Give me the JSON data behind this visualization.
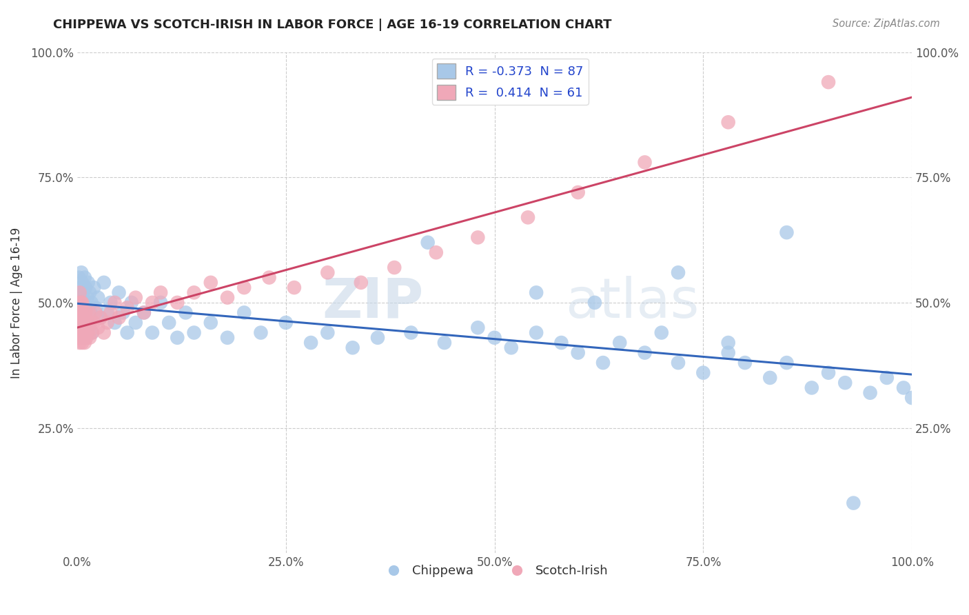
{
  "title": "CHIPPEWA VS SCOTCH-IRISH IN LABOR FORCE | AGE 16-19 CORRELATION CHART",
  "source_text": "Source: ZipAtlas.com",
  "ylabel": "In Labor Force | Age 16-19",
  "legend_labels": [
    "Chippewa",
    "Scotch-Irish"
  ],
  "chippewa_color": "#a8c8e8",
  "scotch_irish_color": "#f0a8b8",
  "chippewa_line_color": "#3366bb",
  "scotch_irish_line_color": "#cc4466",
  "chippewa_R": -0.373,
  "chippewa_N": 87,
  "scotch_irish_R": 0.414,
  "scotch_irish_N": 61,
  "xlim": [
    0.0,
    1.0
  ],
  "ylim": [
    0.0,
    1.0
  ],
  "watermark_zip": "ZIP",
  "watermark_atlas": "atlas",
  "background_color": "#ffffff",
  "grid_color": "#cccccc",
  "chippewa_x": [
    0.001,
    0.002,
    0.003,
    0.003,
    0.004,
    0.004,
    0.005,
    0.005,
    0.006,
    0.006,
    0.007,
    0.007,
    0.008,
    0.008,
    0.009,
    0.009,
    0.01,
    0.01,
    0.011,
    0.012,
    0.013,
    0.014,
    0.015,
    0.016,
    0.017,
    0.018,
    0.02,
    0.022,
    0.025,
    0.028,
    0.032,
    0.036,
    0.04,
    0.045,
    0.05,
    0.055,
    0.06,
    0.065,
    0.07,
    0.08,
    0.09,
    0.1,
    0.11,
    0.12,
    0.13,
    0.14,
    0.16,
    0.18,
    0.2,
    0.22,
    0.25,
    0.28,
    0.3,
    0.33,
    0.36,
    0.4,
    0.44,
    0.48,
    0.5,
    0.52,
    0.55,
    0.58,
    0.6,
    0.63,
    0.65,
    0.68,
    0.7,
    0.72,
    0.75,
    0.78,
    0.8,
    0.83,
    0.85,
    0.88,
    0.9,
    0.92,
    0.95,
    0.97,
    0.99,
    1.0,
    0.42,
    0.55,
    0.72,
    0.85,
    0.93,
    0.62,
    0.78
  ],
  "chippewa_y": [
    0.52,
    0.55,
    0.48,
    0.5,
    0.53,
    0.47,
    0.56,
    0.44,
    0.5,
    0.54,
    0.46,
    0.52,
    0.48,
    0.43,
    0.55,
    0.5,
    0.47,
    0.53,
    0.49,
    0.51,
    0.54,
    0.46,
    0.52,
    0.48,
    0.5,
    0.44,
    0.53,
    0.49,
    0.51,
    0.47,
    0.54,
    0.48,
    0.5,
    0.46,
    0.52,
    0.48,
    0.44,
    0.5,
    0.46,
    0.48,
    0.44,
    0.5,
    0.46,
    0.43,
    0.48,
    0.44,
    0.46,
    0.43,
    0.48,
    0.44,
    0.46,
    0.42,
    0.44,
    0.41,
    0.43,
    0.44,
    0.42,
    0.45,
    0.43,
    0.41,
    0.44,
    0.42,
    0.4,
    0.38,
    0.42,
    0.4,
    0.44,
    0.38,
    0.36,
    0.4,
    0.38,
    0.35,
    0.38,
    0.33,
    0.36,
    0.34,
    0.32,
    0.35,
    0.33,
    0.31,
    0.62,
    0.52,
    0.56,
    0.64,
    0.1,
    0.5,
    0.42
  ],
  "scotch_irish_x": [
    0.001,
    0.001,
    0.002,
    0.002,
    0.003,
    0.003,
    0.003,
    0.004,
    0.004,
    0.005,
    0.005,
    0.005,
    0.006,
    0.006,
    0.006,
    0.007,
    0.007,
    0.008,
    0.008,
    0.009,
    0.009,
    0.01,
    0.01,
    0.011,
    0.012,
    0.013,
    0.014,
    0.015,
    0.016,
    0.018,
    0.02,
    0.022,
    0.025,
    0.028,
    0.032,
    0.036,
    0.04,
    0.045,
    0.05,
    0.06,
    0.07,
    0.08,
    0.09,
    0.1,
    0.12,
    0.14,
    0.16,
    0.18,
    0.2,
    0.23,
    0.26,
    0.3,
    0.34,
    0.38,
    0.43,
    0.48,
    0.54,
    0.6,
    0.68,
    0.78,
    0.9
  ],
  "scotch_irish_y": [
    0.43,
    0.48,
    0.44,
    0.5,
    0.42,
    0.46,
    0.52,
    0.44,
    0.48,
    0.43,
    0.47,
    0.5,
    0.42,
    0.46,
    0.5,
    0.44,
    0.48,
    0.43,
    0.47,
    0.42,
    0.46,
    0.44,
    0.48,
    0.43,
    0.46,
    0.44,
    0.48,
    0.43,
    0.46,
    0.44,
    0.46,
    0.48,
    0.45,
    0.47,
    0.44,
    0.46,
    0.48,
    0.5,
    0.47,
    0.49,
    0.51,
    0.48,
    0.5,
    0.52,
    0.5,
    0.52,
    0.54,
    0.51,
    0.53,
    0.55,
    0.53,
    0.56,
    0.54,
    0.57,
    0.6,
    0.63,
    0.67,
    0.72,
    0.78,
    0.86,
    0.94
  ]
}
